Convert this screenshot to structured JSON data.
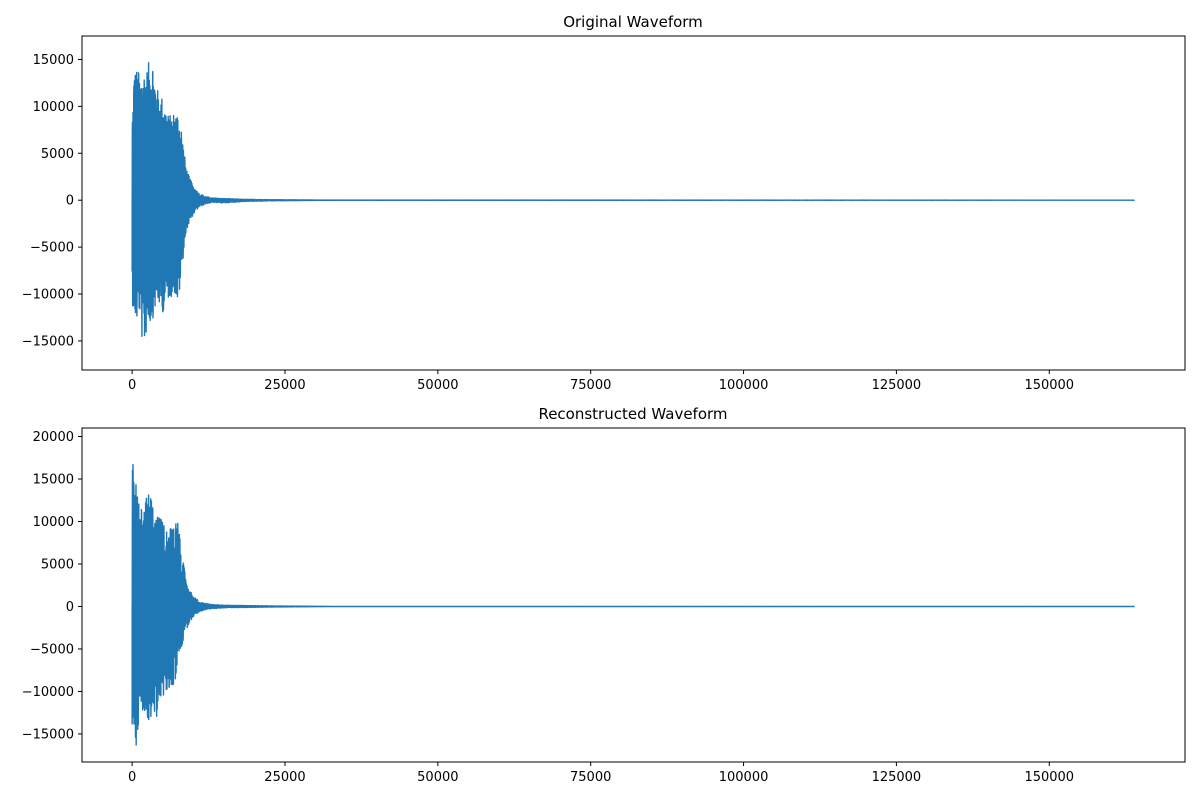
{
  "colors": {
    "line": "#1f77b4",
    "axes": "#000000",
    "background": "#ffffff"
  },
  "chart_data": [
    {
      "type": "line",
      "title": "Original Waveform",
      "xlabel": "",
      "ylabel": "",
      "grid": false,
      "xlim": [
        -8200,
        172200
      ],
      "ylim": [
        -18100,
        17500
      ],
      "x_ticks": [
        0,
        25000,
        50000,
        75000,
        100000,
        125000,
        150000
      ],
      "x_tick_labels": [
        "0",
        "25000",
        "50000",
        "75000",
        "100000",
        "125000",
        "150000"
      ],
      "y_ticks": [
        -15000,
        -10000,
        -5000,
        0,
        5000,
        10000,
        15000
      ],
      "y_tick_labels": [
        "−15000",
        "−10000",
        "−5000",
        "0",
        "5000",
        "10000",
        "15000"
      ],
      "x_max": 164000,
      "series": [
        {
          "envelope": {
            "x": [
              0,
              300,
              700,
              1200,
              1800,
              2500,
              3200,
              4000,
              5000,
              6000,
              7000,
              7500,
              8000,
              8500,
              9000,
              10000,
              11000,
              12000,
              13000,
              15000,
              18000,
              22000,
              26000,
              30000,
              33000,
              164000
            ],
            "upper": [
              9000,
              14000,
              14200,
              13500,
              14000,
              14200,
              16000,
              12000,
              11000,
              9000,
              9500,
              9500,
              8000,
              5000,
              3000,
              1500,
              700,
              400,
              250,
              180,
              100,
              60,
              40,
              20,
              10,
              5
            ],
            "lower": [
              -11000,
              -12500,
              -13200,
              -12000,
              -16300,
              -13500,
              -13000,
              -11000,
              -12000,
              -10500,
              -10000,
              -11500,
              -8000,
              -5000,
              -3000,
              -1500,
              -700,
              -400,
              -250,
              -300,
              -150,
              -80,
              -50,
              -25,
              -10,
              -5
            ]
          }
        }
      ]
    },
    {
      "type": "line",
      "title": "Reconstructed Waveform",
      "xlabel": "",
      "ylabel": "",
      "grid": false,
      "xlim": [
        -8200,
        172200
      ],
      "ylim": [
        -18300,
        21000
      ],
      "x_ticks": [
        0,
        25000,
        50000,
        75000,
        100000,
        125000,
        150000
      ],
      "x_tick_labels": [
        "0",
        "25000",
        "50000",
        "75000",
        "100000",
        "125000",
        "150000"
      ],
      "y_ticks": [
        -15000,
        -10000,
        -5000,
        0,
        5000,
        10000,
        15000,
        20000
      ],
      "y_tick_labels": [
        "−15000",
        "−10000",
        "−5000",
        "0",
        "5000",
        "10000",
        "15000",
        "20000"
      ],
      "x_max": 164000,
      "series": [
        {
          "envelope": {
            "x": [
              0,
              100,
              300,
              700,
              1200,
              1800,
              2500,
              3200,
              4000,
              5000,
              6000,
              7000,
              7500,
              8000,
              8500,
              9000,
              10000,
              11000,
              12000,
              13000,
              15000,
              18000,
              22000,
              26000,
              30000,
              33000,
              164000
            ],
            "upper": [
              13000,
              19700,
              14000,
              15000,
              12000,
              11000,
              13800,
              12500,
              11000,
              10000,
              9000,
              10500,
              10500,
              7000,
              4500,
              2500,
              1200,
              600,
              350,
              250,
              160,
              120,
              80,
              50,
              25,
              10,
              5
            ],
            "lower": [
              -14200,
              -13000,
              -15000,
              -16700,
              -12000,
              -13000,
              -14700,
              -12500,
              -13000,
              -11000,
              -10000,
              -9000,
              -6000,
              -5000,
              -3500,
              -2500,
              -1200,
              -600,
              -350,
              -250,
              -160,
              -120,
              -80,
              -50,
              -25,
              -10,
              -5
            ]
          }
        }
      ]
    }
  ]
}
